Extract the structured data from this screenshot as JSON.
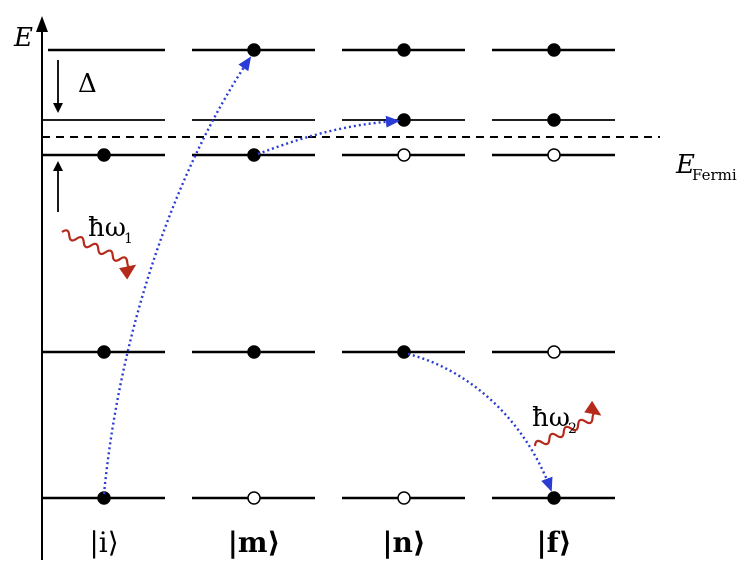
{
  "diagram": {
    "energy_axis_label": "E",
    "fermi_label_main": "E",
    "fermi_label_sub": "Fermi",
    "gap_label": "Δ",
    "photon_in_label": "ħω",
    "photon_in_sub": "1",
    "photon_out_label": "ħω",
    "photon_out_sub": "2",
    "states": [
      {
        "label": "|i⟩",
        "letter": "i",
        "occupancy": [
          "empty",
          "empty",
          "filled",
          "filled",
          "filled"
        ]
      },
      {
        "label": "|m⟩",
        "letter": "m",
        "occupancy": [
          "filled",
          "empty",
          "filled",
          "filled",
          "empty"
        ]
      },
      {
        "label": "|n⟩",
        "letter": "n",
        "occupancy": [
          "filled",
          "filled",
          "empty",
          "filled",
          "empty"
        ]
      },
      {
        "label": "|f⟩",
        "letter": "f",
        "occupancy": [
          "filled",
          "filled",
          "empty",
          "empty",
          "filled"
        ]
      }
    ],
    "level_order_top_to_bottom": [
      "upper-2",
      "upper-1",
      "lower-1",
      "core",
      "deep-core"
    ],
    "colors": {
      "level": "#000000",
      "electron_transition": "#2a3bd6",
      "photon": "#b52a1b",
      "fermi_line": "#000000"
    }
  }
}
